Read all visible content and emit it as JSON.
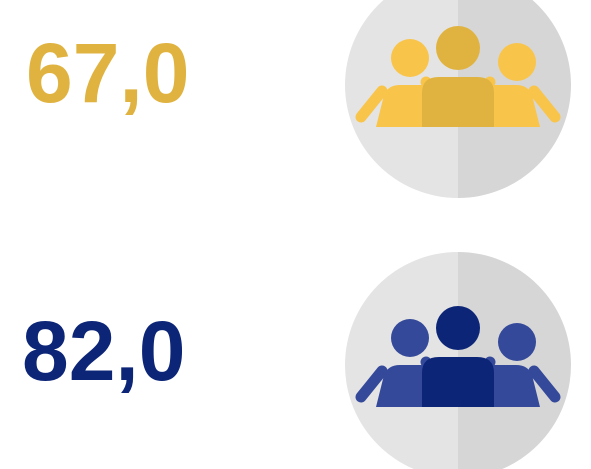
{
  "items": [
    {
      "label": "67,0",
      "color": "#e0b340",
      "accent": "#f9c44a"
    },
    {
      "label": "82,0",
      "color": "#0c2577",
      "accent": "#34499a"
    }
  ]
}
